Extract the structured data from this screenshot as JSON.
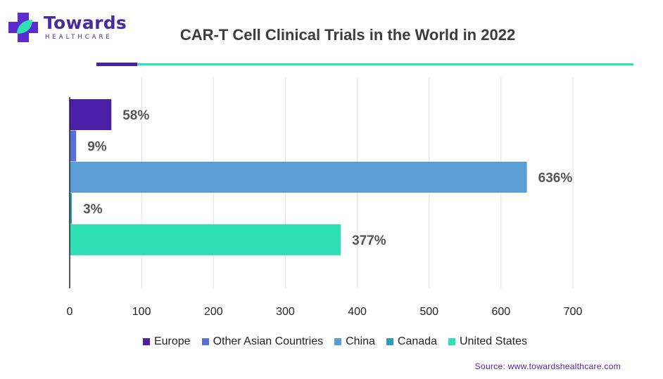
{
  "logo": {
    "name": "Towards",
    "sub": "HEALTHCARE"
  },
  "source": "Source: www.towardshealthcare.com",
  "chart_data": {
    "type": "bar",
    "orientation": "horizontal",
    "title": "CAR-T Cell Clinical Trials in the World in 2022",
    "xlim": [
      0,
      700
    ],
    "xticks": [
      "0",
      "100",
      "200",
      "300",
      "400",
      "500",
      "600",
      "700"
    ],
    "grid": true,
    "legend_placement": "bottom",
    "categories": [
      "Europe",
      "Other Asian Countries",
      "China",
      "Canada",
      "United States"
    ],
    "values": [
      58,
      9,
      636,
      3,
      377
    ],
    "data_labels": [
      "58%",
      "9%",
      "636%",
      "3%",
      "377%"
    ],
    "colors": [
      "#4b1fa8",
      "#5a6fd6",
      "#5b9ed6",
      "#2a9fb5",
      "#2ee0b3"
    ]
  }
}
